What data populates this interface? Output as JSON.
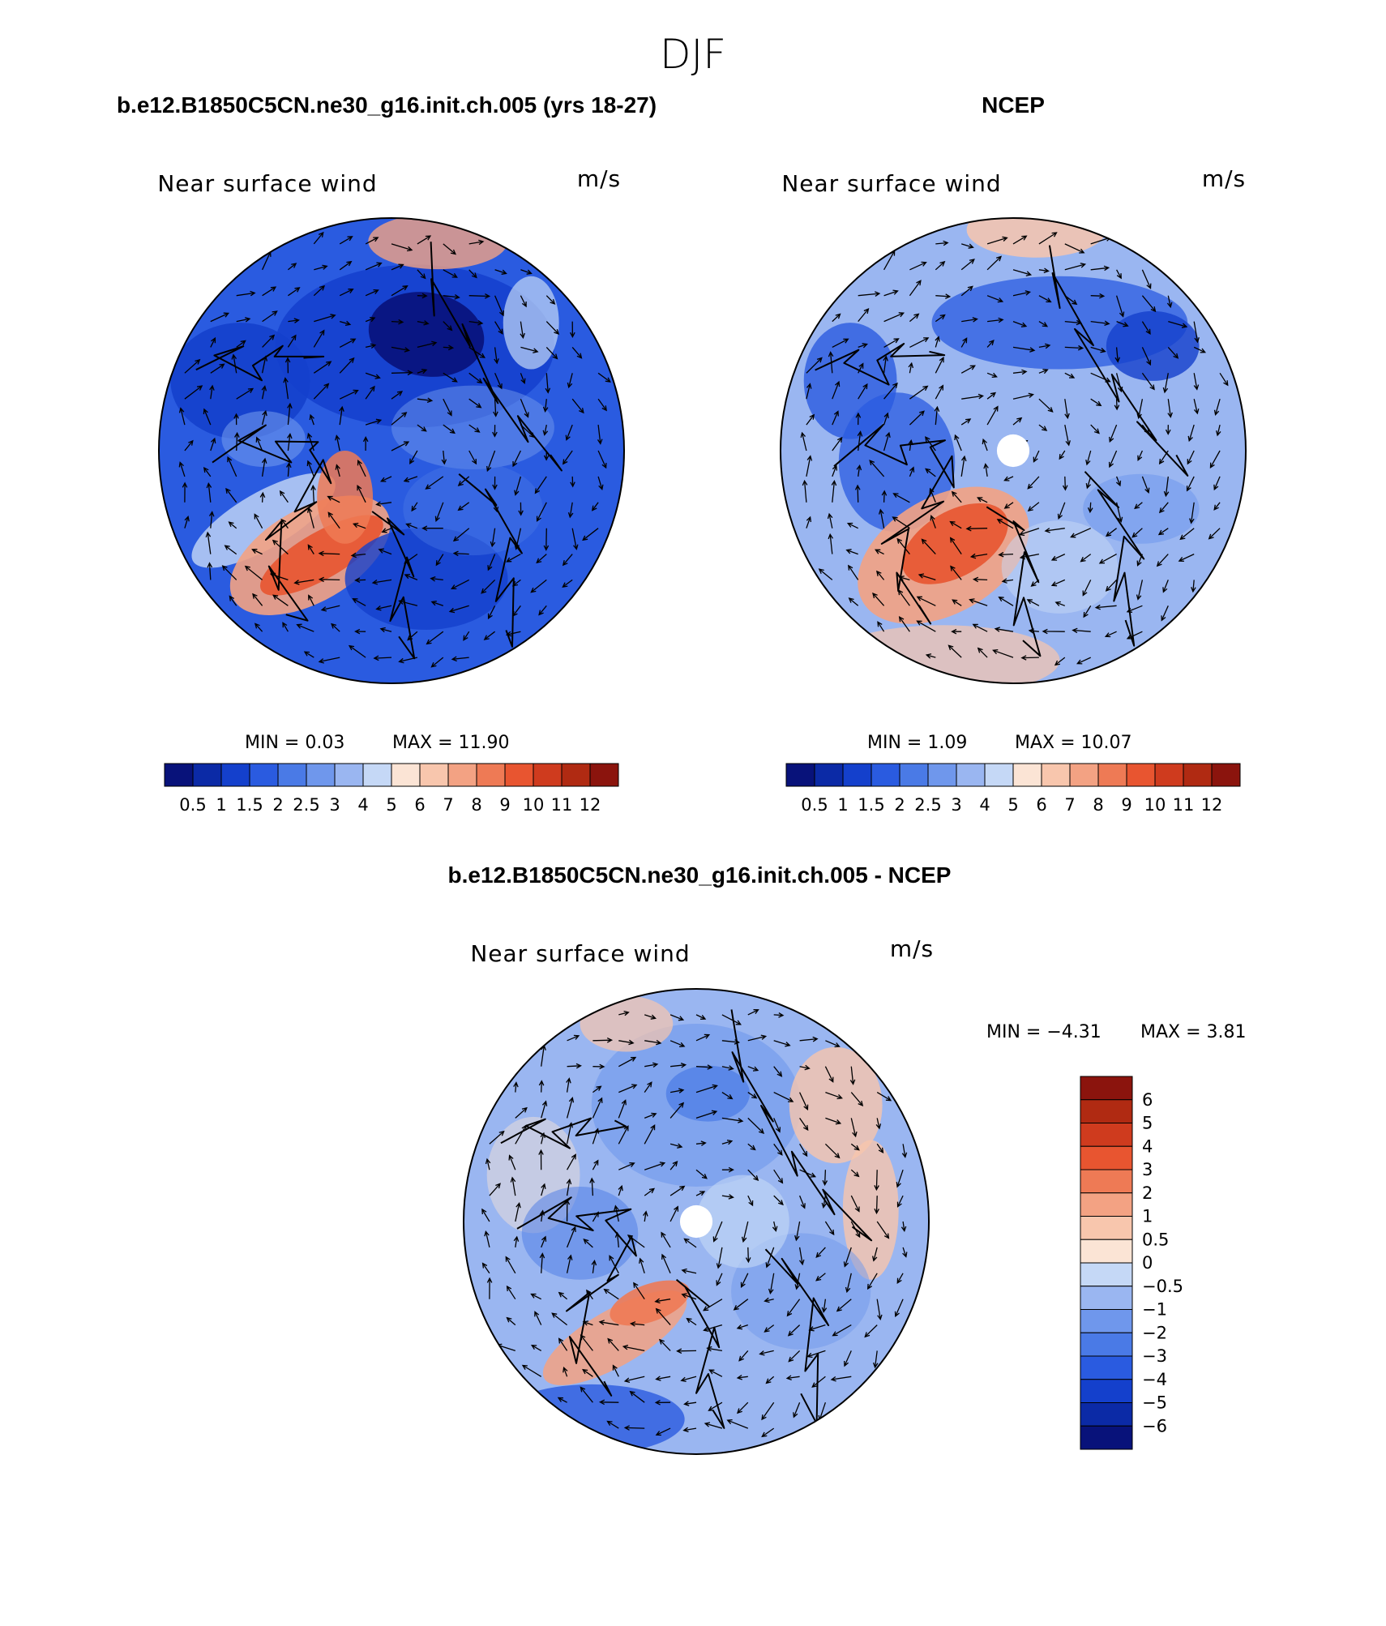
{
  "figure": {
    "title": "DJF"
  },
  "colors": {
    "abs_scale": [
      "#08127a",
      "#0b2aa6",
      "#1440cc",
      "#2a5be0",
      "#4a7ae6",
      "#6f97ec",
      "#9ab6f1",
      "#c5d8f6",
      "#fbe4d5",
      "#f8c6ad",
      "#f3a283",
      "#ee7a55",
      "#e85530",
      "#cf3b1e",
      "#b02a12",
      "#8b140d"
    ],
    "diff_scale": [
      "#08127a",
      "#0b2aa6",
      "#1440cc",
      "#2a5be0",
      "#4a7ae6",
      "#6f97ec",
      "#9ab6f1",
      "#c5d8f6",
      "#fbe4d5",
      "#f8c6ad",
      "#f3a283",
      "#ee7a55",
      "#e85530",
      "#cf3b1e",
      "#b02a12",
      "#8b140d"
    ]
  },
  "chart_data": [
    {
      "type": "heatmap",
      "projection": "north polar stereographic",
      "title": "b.e12.B1850C5CN.ne30_g16.init.ch.005 (yrs 18-27)",
      "subtitle": "Near surface wind",
      "units": "m/s",
      "min_text": "MIN =    0.03",
      "max_text": "MAX =   11.90",
      "min": 0.03,
      "max": 11.9,
      "colorbar": {
        "orientation": "horizontal",
        "levels": [
          0.5,
          1,
          1.5,
          2,
          2.5,
          3,
          4,
          5,
          6,
          7,
          8,
          9,
          10,
          11,
          12
        ],
        "tick_labels": [
          "0.5",
          "1",
          "1.5",
          "2",
          "2.5",
          "3",
          "4",
          "5",
          "6",
          "7",
          "8",
          "9",
          "10",
          "11",
          "12"
        ]
      }
    },
    {
      "type": "heatmap",
      "projection": "north polar stereographic",
      "title": "NCEP",
      "subtitle": "Near surface wind",
      "units": "m/s",
      "min_text": "MIN =    1.09",
      "max_text": "MAX =   10.07",
      "min": 1.09,
      "max": 10.07,
      "colorbar": {
        "orientation": "horizontal",
        "levels": [
          0.5,
          1,
          1.5,
          2,
          2.5,
          3,
          4,
          5,
          6,
          7,
          8,
          9,
          10,
          11,
          12
        ],
        "tick_labels": [
          "0.5",
          "1",
          "1.5",
          "2",
          "2.5",
          "3",
          "4",
          "5",
          "6",
          "7",
          "8",
          "9",
          "10",
          "11",
          "12"
        ]
      }
    },
    {
      "type": "heatmap",
      "projection": "north polar stereographic",
      "title": "b.e12.B1850C5CN.ne30_g16.init.ch.005 - NCEP",
      "subtitle": "Near surface wind",
      "units": "m/s",
      "min_text": "MIN =   −4.31",
      "max_text": "MAX =    3.81",
      "min": -4.31,
      "max": 3.81,
      "colorbar": {
        "orientation": "vertical",
        "levels": [
          -6,
          -5,
          -4,
          -3,
          -2,
          -1,
          -0.5,
          0,
          0.5,
          1,
          2,
          3,
          4,
          5,
          6
        ],
        "tick_labels": [
          "6",
          "5",
          "4",
          "3",
          "2",
          "1",
          "0.5",
          "0",
          "−0.5",
          "−1",
          "−2",
          "−3",
          "−4",
          "−5",
          "−6"
        ]
      }
    }
  ]
}
